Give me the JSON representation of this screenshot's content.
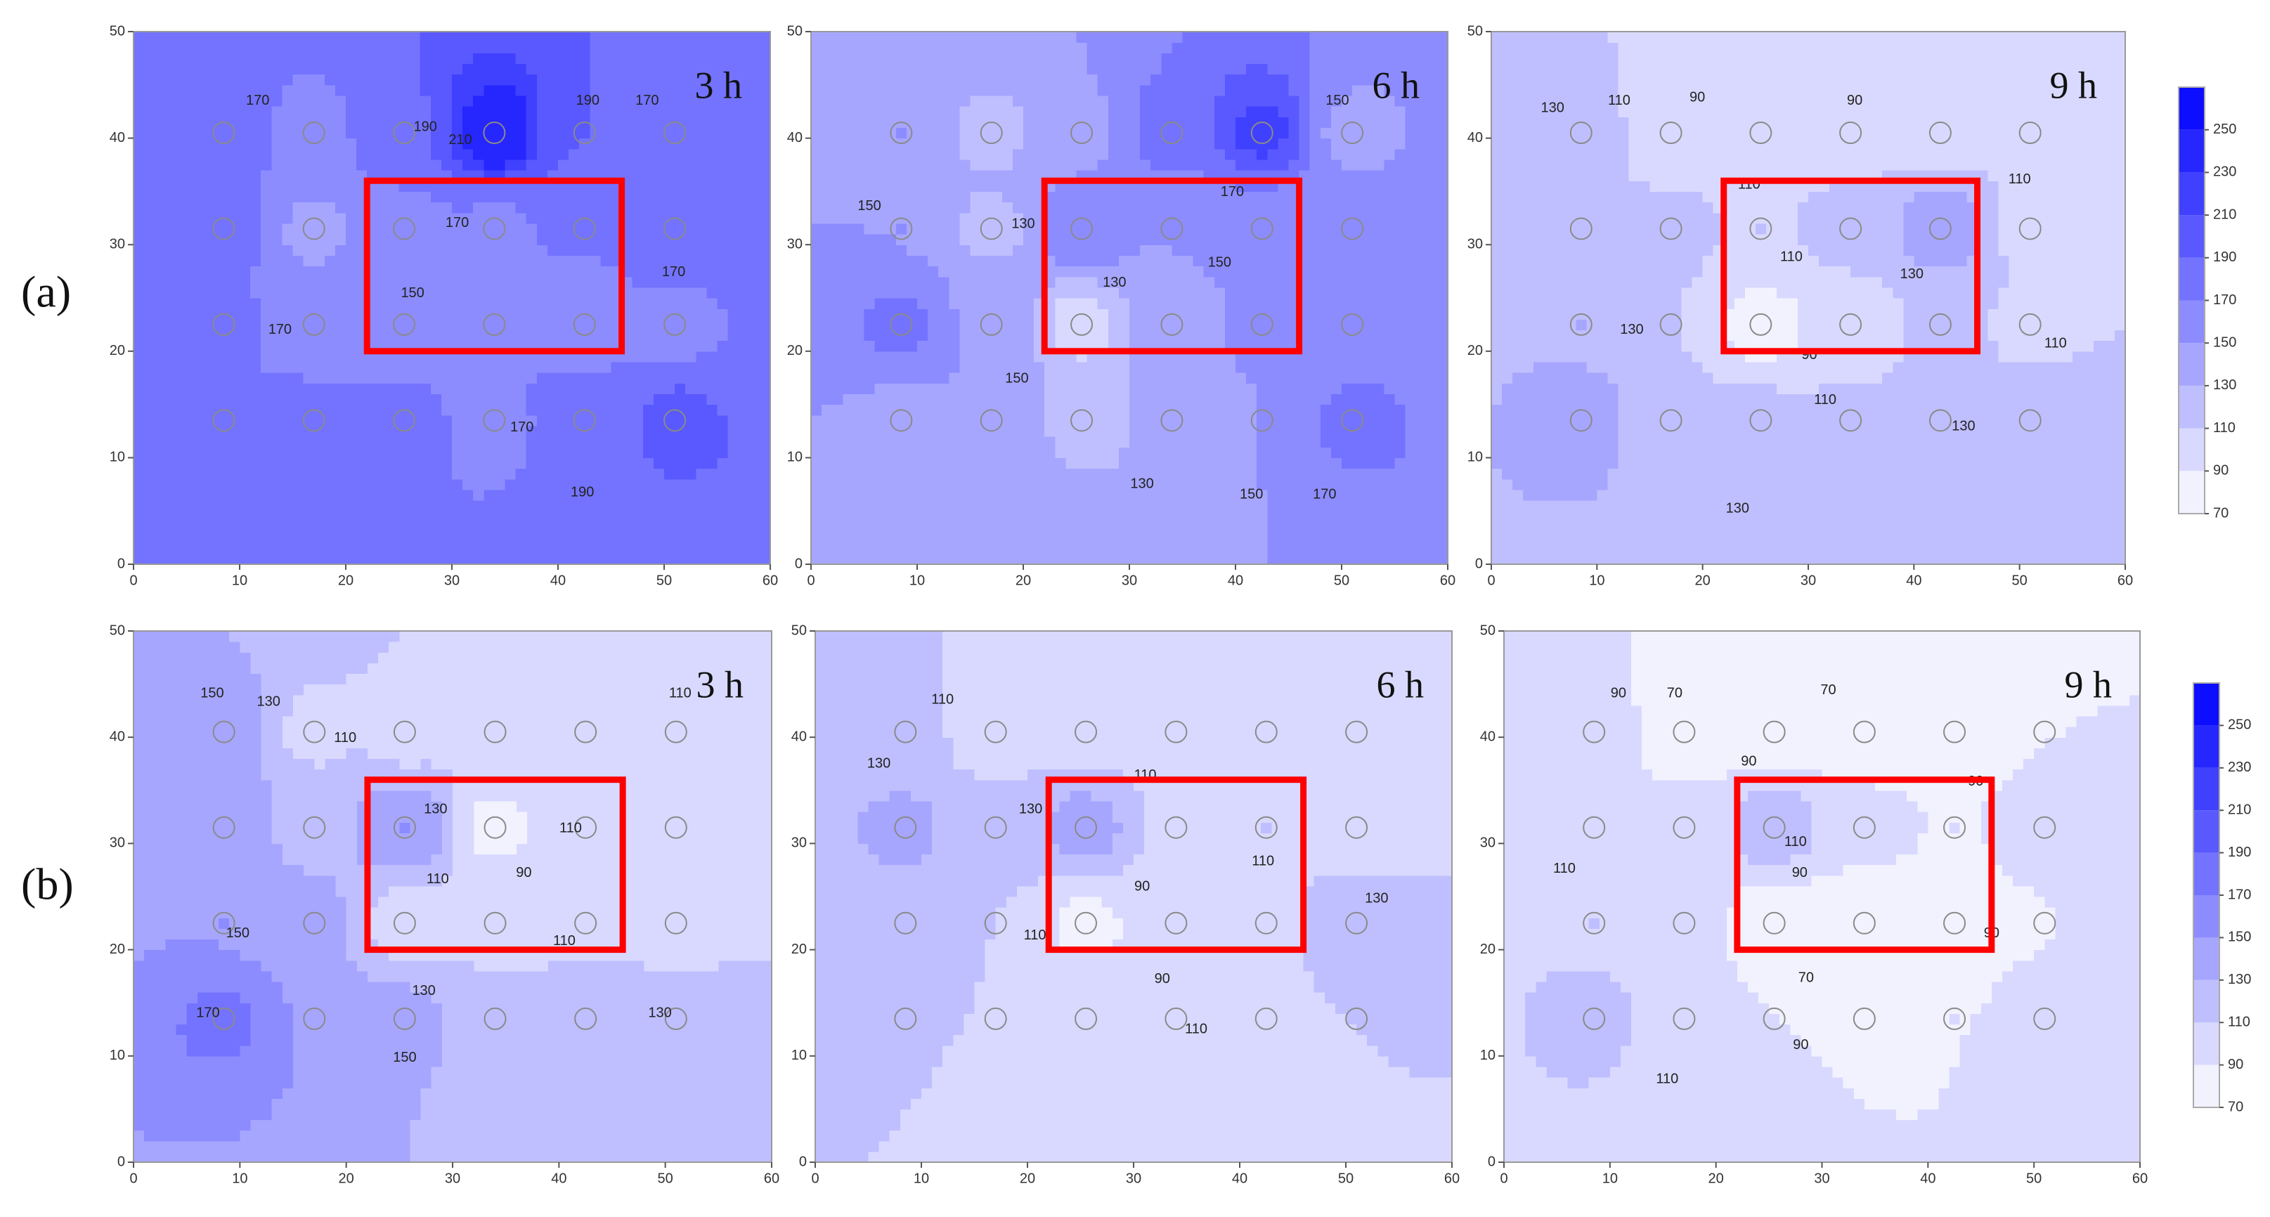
{
  "row_labels": [
    "(a)",
    "(b)"
  ],
  "colorbars": [
    {
      "zlim": [
        70,
        270
      ],
      "zticks": [
        70,
        90,
        110,
        130,
        150,
        170,
        190,
        210,
        230,
        250
      ],
      "cmap": [
        "#ffffff",
        "#0000ff"
      ]
    },
    {
      "zlim": [
        70,
        270
      ],
      "zticks": [
        70,
        90,
        110,
        130,
        150,
        170,
        190,
        210,
        230,
        250
      ],
      "cmap": [
        "#ffffff",
        "#0000ff"
      ]
    }
  ],
  "chart_data": [
    {
      "type": "contour",
      "label": "3 h",
      "xlim": [
        0,
        60
      ],
      "ylim": [
        0,
        50
      ],
      "xticks": [
        0,
        10,
        20,
        30,
        40,
        50,
        60
      ],
      "yticks": [
        0,
        10,
        20,
        30,
        40,
        50
      ],
      "points": {
        "x": [
          8.5,
          17,
          25.5,
          34,
          42.5,
          51
        ],
        "y": [
          13.5,
          22.5,
          31.5,
          40.5
        ]
      },
      "values": [
        [
          180,
          180,
          175,
          165,
          185,
          195
        ],
        [
          175,
          150,
          150,
          170,
          155,
          165
        ],
        [
          180,
          145,
          160,
          165,
          170,
          185
        ],
        [
          180,
          165,
          185,
          250,
          190,
          175
        ]
      ],
      "contour_labels": [
        {
          "x": 11.7,
          "y": 43.5,
          "value": 170
        },
        {
          "x": 27.5,
          "y": 41,
          "value": 190
        },
        {
          "x": 30.8,
          "y": 39.8,
          "value": 210
        },
        {
          "x": 42.8,
          "y": 43.5,
          "value": 190
        },
        {
          "x": 48.4,
          "y": 43.5,
          "value": 170
        },
        {
          "x": 30.5,
          "y": 32,
          "value": 170
        },
        {
          "x": 26.3,
          "y": 25.4,
          "value": 150
        },
        {
          "x": 13.8,
          "y": 22,
          "value": 170
        },
        {
          "x": 50.9,
          "y": 27.4,
          "value": 170
        },
        {
          "x": 36.6,
          "y": 12.8,
          "value": 170
        },
        {
          "x": 42.3,
          "y": 6.7,
          "value": 190
        }
      ],
      "highlight": {
        "x": [
          22,
          46
        ],
        "y": [
          20,
          36
        ],
        "color": "#ff0000"
      }
    },
    {
      "type": "contour",
      "label": "6 h",
      "xlim": [
        0,
        60
      ],
      "ylim": [
        0,
        50
      ],
      "xticks": [
        0,
        10,
        20,
        30,
        40,
        50,
        60
      ],
      "yticks": [
        0,
        10,
        20,
        30,
        40,
        50
      ],
      "points": {
        "x": [
          8.5,
          17,
          25.5,
          34,
          42.5,
          51
        ],
        "y": [
          13.5,
          22.5,
          31.5,
          40.5
        ]
      },
      "values": [
        [
          145,
          150,
          125,
          130,
          150,
          175
        ],
        [
          175,
          145,
          100,
          140,
          155,
          160
        ],
        [
          150,
          125,
          165,
          150,
          155,
          155
        ],
        [
          150,
          125,
          145,
          180,
          215,
          145
        ]
      ],
      "contour_labels": [
        {
          "x": 5.5,
          "y": 33.6,
          "value": 150
        },
        {
          "x": 20,
          "y": 31.9,
          "value": 130
        },
        {
          "x": 39.7,
          "y": 34.9,
          "value": 170
        },
        {
          "x": 49.6,
          "y": 43.5,
          "value": 150
        },
        {
          "x": 28.6,
          "y": 26.4,
          "value": 130
        },
        {
          "x": 38.5,
          "y": 28.3,
          "value": 150
        },
        {
          "x": 19.4,
          "y": 17.4,
          "value": 150
        },
        {
          "x": 31.2,
          "y": 7.5,
          "value": 130
        },
        {
          "x": 41.5,
          "y": 6.5,
          "value": 150
        },
        {
          "x": 48.4,
          "y": 6.5,
          "value": 170
        }
      ],
      "highlight": {
        "x": [
          22,
          46
        ],
        "y": [
          20,
          36
        ],
        "color": "#ff0000"
      }
    },
    {
      "type": "contour",
      "label": "9 h",
      "xlim": [
        0,
        60
      ],
      "ylim": [
        0,
        50
      ],
      "xticks": [
        0,
        10,
        20,
        30,
        40,
        50,
        60
      ],
      "yticks": [
        0,
        10,
        20,
        30,
        40,
        50
      ],
      "points": {
        "x": [
          8.5,
          17,
          25.5,
          34,
          42.5,
          51
        ],
        "y": [
          13.5,
          22.5,
          31.5,
          40.5
        ]
      },
      "values": [
        [
          140,
          120,
          115,
          115,
          125,
          120
        ],
        [
          130,
          110,
          80,
          90,
          115,
          105
        ],
        [
          125,
          115,
          110,
          120,
          145,
          105
        ],
        [
          120,
          95,
          95,
          95,
          105,
          100
        ]
      ],
      "contour_labels": [
        {
          "x": 5.8,
          "y": 42.8,
          "value": 130
        },
        {
          "x": 12.1,
          "y": 43.5,
          "value": 110
        },
        {
          "x": 19.5,
          "y": 43.8,
          "value": 90
        },
        {
          "x": 34.4,
          "y": 43.5,
          "value": 90
        },
        {
          "x": 50,
          "y": 36.1,
          "value": 110
        },
        {
          "x": 24.4,
          "y": 35.6,
          "value": 110
        },
        {
          "x": 28.4,
          "y": 28.8,
          "value": 110
        },
        {
          "x": 39.8,
          "y": 27.2,
          "value": 130
        },
        {
          "x": 13.3,
          "y": 22,
          "value": 130
        },
        {
          "x": 53.4,
          "y": 20.7,
          "value": 110
        },
        {
          "x": 30.1,
          "y": 19.6,
          "value": 90
        },
        {
          "x": 31.6,
          "y": 15.4,
          "value": 110
        },
        {
          "x": 44.7,
          "y": 12.9,
          "value": 130
        },
        {
          "x": 23.3,
          "y": 5.2,
          "value": 130
        }
      ],
      "highlight": {
        "x": [
          22,
          46
        ],
        "y": [
          20,
          36
        ],
        "color": "#ff0000"
      }
    },
    {
      "type": "contour",
      "label": "3 h",
      "xlim": [
        0,
        60
      ],
      "ylim": [
        0,
        50
      ],
      "xticks": [
        0,
        10,
        20,
        30,
        40,
        50,
        60
      ],
      "yticks": [
        0,
        10,
        20,
        30,
        40,
        50
      ],
      "points": {
        "x": [
          8.5,
          17,
          25.5,
          34,
          42.5,
          51
        ],
        "y": [
          13.5,
          22.5,
          31.5,
          40.5
        ]
      },
      "values": [
        [
          175,
          150,
          135,
          125,
          120,
          125
        ],
        [
          150,
          135,
          100,
          95,
          105,
          100
        ],
        [
          140,
          125,
          150,
          85,
          100,
          100
        ],
        [
          145,
          105,
          105,
          100,
          100,
          105
        ]
      ],
      "contour_labels": [
        {
          "x": 7.4,
          "y": 44.1,
          "value": 150
        },
        {
          "x": 12.7,
          "y": 43.3,
          "value": 130
        },
        {
          "x": 51.4,
          "y": 44.1,
          "value": 110
        },
        {
          "x": 19.9,
          "y": 39.9,
          "value": 110
        },
        {
          "x": 28.4,
          "y": 33.2,
          "value": 130
        },
        {
          "x": 41.1,
          "y": 31.4,
          "value": 110
        },
        {
          "x": 28.6,
          "y": 26.6,
          "value": 110
        },
        {
          "x": 36.7,
          "y": 27.2,
          "value": 90
        },
        {
          "x": 9.8,
          "y": 21.5,
          "value": 150
        },
        {
          "x": 40.5,
          "y": 20.8,
          "value": 110
        },
        {
          "x": 27.3,
          "y": 16.1,
          "value": 130
        },
        {
          "x": 7,
          "y": 14,
          "value": 170
        },
        {
          "x": 49.5,
          "y": 14,
          "value": 130
        },
        {
          "x": 25.5,
          "y": 9.8,
          "value": 150
        }
      ],
      "highlight": {
        "x": [
          22,
          46
        ],
        "y": [
          20,
          36
        ],
        "color": "#ff0000"
      }
    },
    {
      "type": "contour",
      "label": "6 h",
      "xlim": [
        0,
        60
      ],
      "ylim": [
        0,
        50
      ],
      "xticks": [
        0,
        10,
        20,
        30,
        40,
        50,
        60
      ],
      "yticks": [
        0,
        10,
        20,
        30,
        40,
        50
      ],
      "points": {
        "x": [
          8.5,
          17,
          25.5,
          34,
          42.5,
          51
        ],
        "y": [
          13.5,
          22.5,
          31.5,
          40.5
        ]
      },
      "values": [
        [
          110,
          110,
          105,
          100,
          105,
          110
        ],
        [
          120,
          110,
          85,
          90,
          105,
          130
        ],
        [
          135,
          115,
          140,
          105,
          110,
          95
        ],
        [
          115,
          100,
          100,
          100,
          105,
          110
        ]
      ],
      "contour_labels": [
        {
          "x": 12,
          "y": 43.5,
          "value": 110
        },
        {
          "x": 6,
          "y": 37.5,
          "value": 130
        },
        {
          "x": 31.1,
          "y": 36.4,
          "value": 110
        },
        {
          "x": 20.3,
          "y": 33.2,
          "value": 130
        },
        {
          "x": 42.2,
          "y": 28.3,
          "value": 110
        },
        {
          "x": 30.8,
          "y": 25.9,
          "value": 90
        },
        {
          "x": 52.9,
          "y": 24.8,
          "value": 130
        },
        {
          "x": 20.7,
          "y": 21.3,
          "value": 110
        },
        {
          "x": 32.7,
          "y": 17.2,
          "value": 90
        },
        {
          "x": 35.9,
          "y": 12.5,
          "value": 110
        }
      ],
      "highlight": {
        "x": [
          22,
          46
        ],
        "y": [
          20,
          36
        ],
        "color": "#ff0000"
      }
    },
    {
      "type": "contour",
      "label": "9 h",
      "xlim": [
        0,
        60
      ],
      "ylim": [
        0,
        50
      ],
      "xticks": [
        0,
        10,
        20,
        30,
        40,
        50,
        60
      ],
      "yticks": [
        0,
        10,
        20,
        30,
        40,
        50
      ],
      "points": {
        "x": [
          8.5,
          17,
          25.5,
          34,
          42.5,
          51
        ],
        "y": [
          13.5,
          22.5,
          31.5,
          40.5
        ]
      },
      "values": [
        [
          115,
          100,
          90,
          90,
          90,
          95
        ],
        [
          110,
          100,
          75,
          75,
          80,
          90
        ],
        [
          105,
          95,
          125,
          95,
          90,
          95
        ],
        [
          100,
          75,
          75,
          80,
          85,
          90
        ]
      ],
      "contour_labels": [
        {
          "x": 10.8,
          "y": 44.1,
          "value": 90
        },
        {
          "x": 16.1,
          "y": 44.1,
          "value": 70
        },
        {
          "x": 30.6,
          "y": 44.4,
          "value": 70
        },
        {
          "x": 23.1,
          "y": 37.7,
          "value": 90
        },
        {
          "x": 44.5,
          "y": 35.8,
          "value": 90
        },
        {
          "x": 27.5,
          "y": 30.1,
          "value": 110
        },
        {
          "x": 27.9,
          "y": 27.2,
          "value": 90
        },
        {
          "x": 5.7,
          "y": 27.6,
          "value": 110
        },
        {
          "x": 46,
          "y": 21.5,
          "value": 90
        },
        {
          "x": 28.5,
          "y": 17.3,
          "value": 70
        },
        {
          "x": 28,
          "y": 11,
          "value": 90
        },
        {
          "x": 15.4,
          "y": 7.8,
          "value": 110
        }
      ],
      "highlight": {
        "x": [
          22,
          46
        ],
        "y": [
          20,
          36
        ],
        "color": "#ff0000"
      }
    }
  ]
}
